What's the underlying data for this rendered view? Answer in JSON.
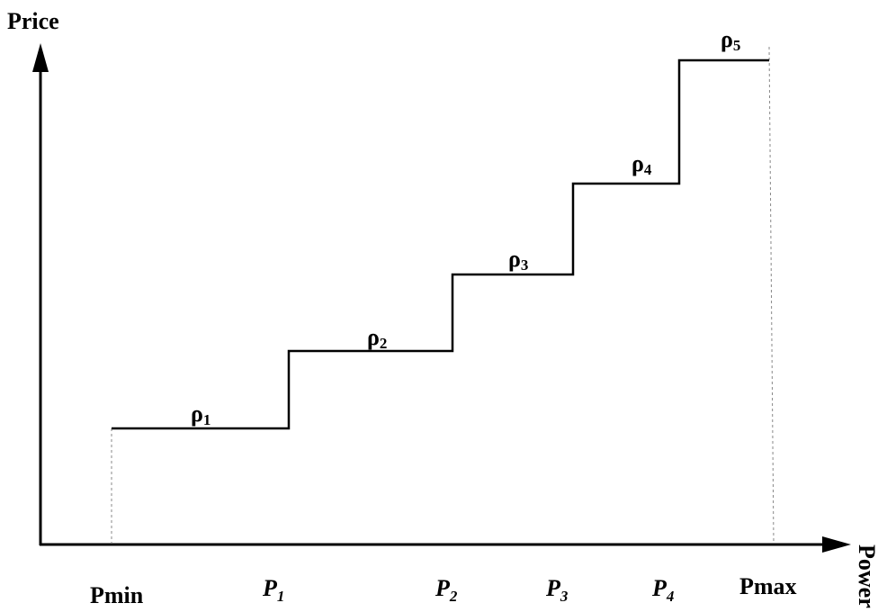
{
  "axes": {
    "y_label": "Price",
    "x_label": "Power"
  },
  "steps": [
    {
      "symbol": "ρ",
      "sub": "1"
    },
    {
      "symbol": "ρ",
      "sub": "2"
    },
    {
      "symbol": "ρ",
      "sub": "3"
    },
    {
      "symbol": "ρ",
      "sub": "4"
    },
    {
      "symbol": "ρ",
      "sub": "5"
    }
  ],
  "x_labels": [
    {
      "text": "Pmin"
    },
    {
      "symbol": "P",
      "sub": "1"
    },
    {
      "symbol": "P",
      "sub": "2"
    },
    {
      "symbol": "P",
      "sub": "3"
    },
    {
      "symbol": "P",
      "sub": "4"
    },
    {
      "text": "Pmax"
    }
  ]
}
